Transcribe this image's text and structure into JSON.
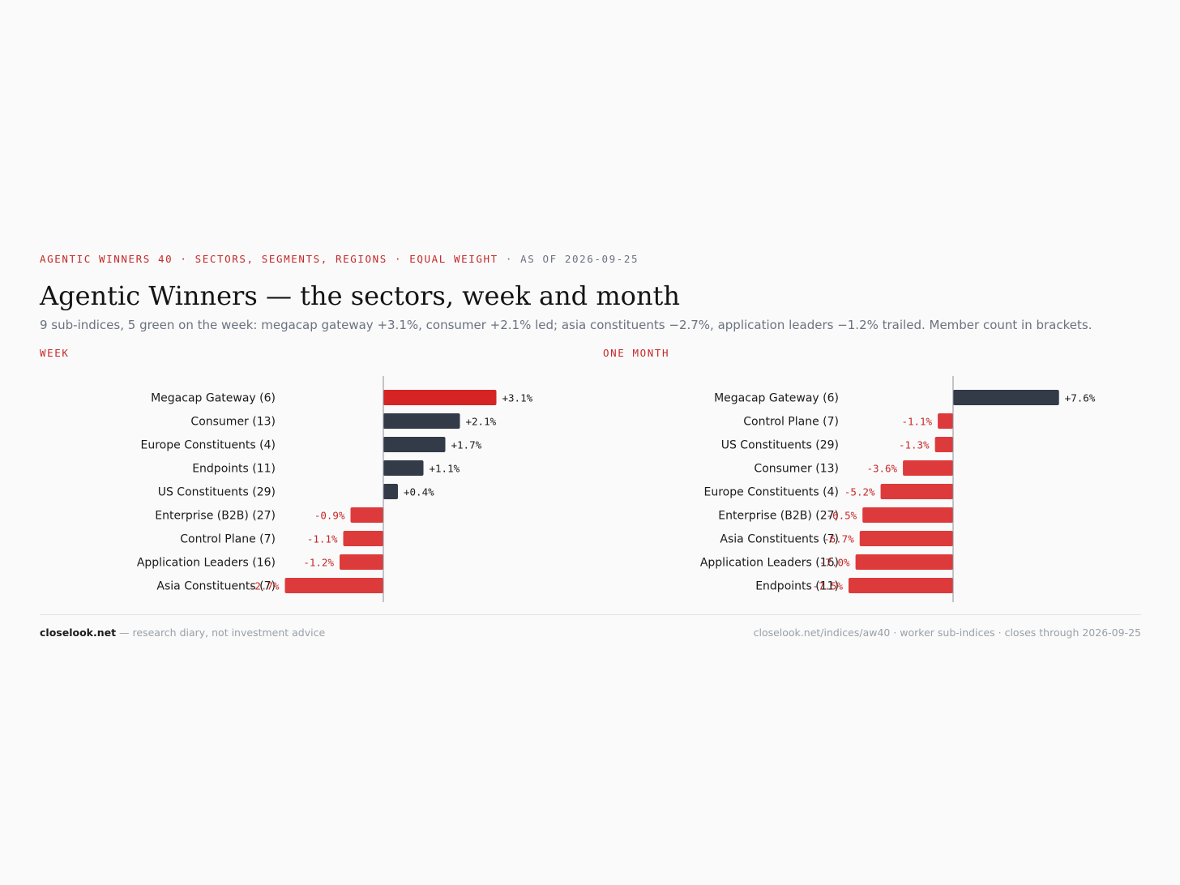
{
  "header": {
    "kicker_main": "AGENTIC WINNERS 40 · SECTORS, SEGMENTS, REGIONS · EQUAL WEIGHT",
    "kicker_date": " · AS OF 2026-09-25",
    "title": "Agentic Winners — the sectors, week and month",
    "subtitle": "9 sub-indices, 5 green on the week: megacap gateway +3.1%, consumer +2.1% led; asia constituents −2.7%, application leaders −1.2% trailed. Member count in brackets."
  },
  "colors": {
    "accent_red": "#c62828",
    "bar_red": "#dd3b3b",
    "bar_highlight": "#d62424",
    "bar_dark": "#333a48",
    "neg_label": "#c62828",
    "pos_label": "#1a1a1a"
  },
  "chart_data": [
    {
      "type": "bar",
      "orientation": "horizontal",
      "title": "WEEK",
      "categories": [
        "Megacap Gateway (6)",
        "Consumer (13)",
        "Europe Constituents (4)",
        "Endpoints (11)",
        "US Constituents (29)",
        "Enterprise (B2B) (27)",
        "Control Plane (7)",
        "Application Leaders (16)",
        "Asia Constituents (7)"
      ],
      "values": [
        3.1,
        2.1,
        1.7,
        1.1,
        0.4,
        -0.9,
        -1.1,
        -1.2,
        -2.7
      ],
      "labels": [
        "+3.1%",
        "+2.1%",
        "+1.7%",
        "+1.1%",
        "+0.4%",
        "-0.9%",
        "-1.1%",
        "-1.2%",
        "-2.7%"
      ],
      "xlim": [
        -3.0,
        4.0
      ],
      "grid": false
    },
    {
      "type": "bar",
      "orientation": "horizontal",
      "title": "ONE MONTH",
      "categories": [
        "Megacap Gateway (6)",
        "Control Plane (7)",
        "US Constituents (29)",
        "Consumer (13)",
        "Europe Constituents (4)",
        "Enterprise (B2B) (27)",
        "Asia Constituents (7)",
        "Application Leaders (16)",
        "Endpoints (11)"
      ],
      "values": [
        7.6,
        -1.1,
        -1.3,
        -3.6,
        -5.2,
        -6.5,
        -6.7,
        -7.0,
        -7.5
      ],
      "labels": [
        "+7.6%",
        "-1.1%",
        "-1.3%",
        "-3.6%",
        "-5.2%",
        "-6.5%",
        "-6.7%",
        "-7.0%",
        "-7.5%"
      ],
      "xlim": [
        -8.0,
        10.0
      ],
      "grid": false
    }
  ],
  "footer": {
    "brand": "closelook.net",
    "tagline": " — research diary, not investment advice",
    "right": "closelook.net/indices/aw40 · worker sub-indices · closes through 2026-09-25"
  }
}
